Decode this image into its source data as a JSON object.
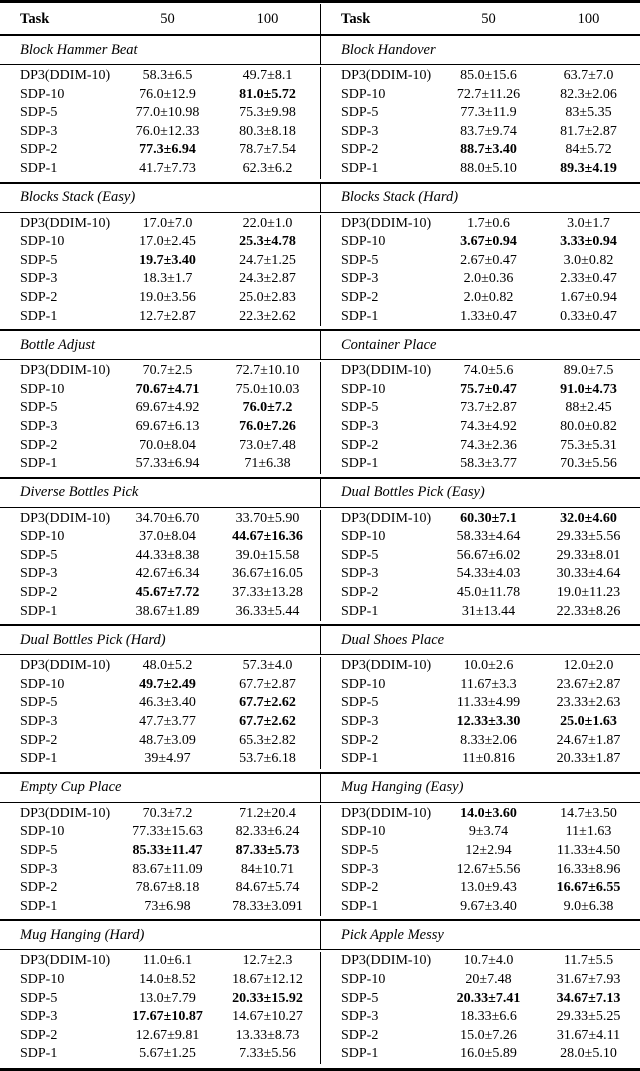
{
  "table": {
    "header": {
      "task": "Task",
      "col50": "50",
      "col100": "100"
    },
    "groups": [
      {
        "left": {
          "title": "Block Hammer Beat",
          "rows": [
            {
              "method": "DP3(DDIM-10)",
              "v50": "58.3±6.5",
              "b50": false,
              "v100": "49.7±8.1",
              "b100": false
            },
            {
              "method": "SDP-10",
              "v50": "76.0±12.9",
              "b50": false,
              "v100": "81.0±5.72",
              "b100": true
            },
            {
              "method": "SDP-5",
              "v50": "77.0±10.98",
              "b50": false,
              "v100": "75.3±9.98",
              "b100": false
            },
            {
              "method": "SDP-3",
              "v50": "76.0±12.33",
              "b50": false,
              "v100": "80.3±8.18",
              "b100": false
            },
            {
              "method": "SDP-2",
              "v50": "77.3±6.94",
              "b50": true,
              "v100": "78.7±7.54",
              "b100": false
            },
            {
              "method": "SDP-1",
              "v50": "41.7±7.73",
              "b50": false,
              "v100": "62.3±6.2",
              "b100": false
            }
          ]
        },
        "right": {
          "title": "Block Handover",
          "rows": [
            {
              "method": "DP3(DDIM-10)",
              "v50": "85.0±15.6",
              "b50": false,
              "v100": "63.7±7.0",
              "b100": false
            },
            {
              "method": "SDP-10",
              "v50": "72.7±11.26",
              "b50": false,
              "v100": "82.3±2.06",
              "b100": false
            },
            {
              "method": "SDP-5",
              "v50": "77.3±11.9",
              "b50": false,
              "v100": "83±5.35",
              "b100": false
            },
            {
              "method": "SDP-3",
              "v50": "83.7±9.74",
              "b50": false,
              "v100": "81.7±2.87",
              "b100": false
            },
            {
              "method": "SDP-2",
              "v50": "88.7±3.40",
              "b50": true,
              "v100": "84±5.72",
              "b100": false
            },
            {
              "method": "SDP-1",
              "v50": "88.0±5.10",
              "b50": false,
              "v100": "89.3±4.19",
              "b100": true
            }
          ]
        }
      },
      {
        "left": {
          "title": "Blocks Stack (Easy)",
          "rows": [
            {
              "method": "DP3(DDIM-10)",
              "v50": "17.0±7.0",
              "b50": false,
              "v100": "22.0±1.0",
              "b100": false
            },
            {
              "method": "SDP-10",
              "v50": "17.0±2.45",
              "b50": false,
              "v100": "25.3±4.78",
              "b100": true
            },
            {
              "method": "SDP-5",
              "v50": "19.7±3.40",
              "b50": true,
              "v100": "24.7±1.25",
              "b100": false
            },
            {
              "method": "SDP-3",
              "v50": "18.3±1.7",
              "b50": false,
              "v100": "24.3±2.87",
              "b100": false
            },
            {
              "method": "SDP-2",
              "v50": "19.0±3.56",
              "b50": false,
              "v100": "25.0±2.83",
              "b100": false
            },
            {
              "method": "SDP-1",
              "v50": "12.7±2.87",
              "b50": false,
              "v100": "22.3±2.62",
              "b100": false
            }
          ]
        },
        "right": {
          "title": "Blocks Stack (Hard)",
          "rows": [
            {
              "method": "DP3(DDIM-10)",
              "v50": "1.7±0.6",
              "b50": false,
              "v100": "3.0±1.7",
              "b100": false
            },
            {
              "method": "SDP-10",
              "v50": "3.67±0.94",
              "b50": true,
              "v100": "3.33±0.94",
              "b100": true
            },
            {
              "method": "SDP-5",
              "v50": "2.67±0.47",
              "b50": false,
              "v100": "3.0±0.82",
              "b100": false
            },
            {
              "method": "SDP-3",
              "v50": "2.0±0.36",
              "b50": false,
              "v100": "2.33±0.47",
              "b100": false
            },
            {
              "method": "SDP-2",
              "v50": "2.0±0.82",
              "b50": false,
              "v100": "1.67±0.94",
              "b100": false
            },
            {
              "method": "SDP-1",
              "v50": "1.33±0.47",
              "b50": false,
              "v100": "0.33±0.47",
              "b100": false
            }
          ]
        }
      },
      {
        "left": {
          "title": "Bottle Adjust",
          "rows": [
            {
              "method": "DP3(DDIM-10)",
              "v50": "70.7±2.5",
              "b50": false,
              "v100": "72.7±10.10",
              "b100": false
            },
            {
              "method": "SDP-10",
              "v50": "70.67±4.71",
              "b50": true,
              "v100": "75.0±10.03",
              "b100": false
            },
            {
              "method": "SDP-5",
              "v50": "69.67±4.92",
              "b50": false,
              "v100": "76.0±7.2",
              "b100": true
            },
            {
              "method": "SDP-3",
              "v50": "69.67±6.13",
              "b50": false,
              "v100": "76.0±7.26",
              "b100": true
            },
            {
              "method": "SDP-2",
              "v50": "70.0±8.04",
              "b50": false,
              "v100": "73.0±7.48",
              "b100": false
            },
            {
              "method": "SDP-1",
              "v50": "57.33±6.94",
              "b50": false,
              "v100": "71±6.38",
              "b100": false
            }
          ]
        },
        "right": {
          "title": "Container Place",
          "rows": [
            {
              "method": "DP3(DDIM-10)",
              "v50": "74.0±5.6",
              "b50": false,
              "v100": "89.0±7.5",
              "b100": false
            },
            {
              "method": "SDP-10",
              "v50": "75.7±0.47",
              "b50": true,
              "v100": "91.0±4.73",
              "b100": true
            },
            {
              "method": "SDP-5",
              "v50": "73.7±2.87",
              "b50": false,
              "v100": "88±2.45",
              "b100": false
            },
            {
              "method": "SDP-3",
              "v50": "74.3±4.92",
              "b50": false,
              "v100": "80.0±0.82",
              "b100": false
            },
            {
              "method": "SDP-2",
              "v50": "74.3±2.36",
              "b50": false,
              "v100": "75.3±5.31",
              "b100": false
            },
            {
              "method": "SDP-1",
              "v50": "58.3±3.77",
              "b50": false,
              "v100": "70.3±5.56",
              "b100": false
            }
          ]
        }
      },
      {
        "left": {
          "title": "Diverse Bottles Pick",
          "rows": [
            {
              "method": "DP3(DDIM-10)",
              "v50": "34.70±6.70",
              "b50": false,
              "v100": "33.70±5.90",
              "b100": false
            },
            {
              "method": "SDP-10",
              "v50": "37.0±8.04",
              "b50": false,
              "v100": "44.67±16.36",
              "b100": true
            },
            {
              "method": "SDP-5",
              "v50": "44.33±8.38",
              "b50": false,
              "v100": "39.0±15.58",
              "b100": false
            },
            {
              "method": "SDP-3",
              "v50": "42.67±6.34",
              "b50": false,
              "v100": "36.67±16.05",
              "b100": false
            },
            {
              "method": "SDP-2",
              "v50": "45.67±7.72",
              "b50": true,
              "v100": "37.33±13.28",
              "b100": false
            },
            {
              "method": "SDP-1",
              "v50": "38.67±1.89",
              "b50": false,
              "v100": "36.33±5.44",
              "b100": false
            }
          ]
        },
        "right": {
          "title": "Dual Bottles Pick (Easy)",
          "rows": [
            {
              "method": "DP3(DDIM-10)",
              "v50": "60.30±7.1",
              "b50": true,
              "v100": "32.0±4.60",
              "b100": true
            },
            {
              "method": "SDP-10",
              "v50": "58.33±4.64",
              "b50": false,
              "v100": "29.33±5.56",
              "b100": false
            },
            {
              "method": "SDP-5",
              "v50": "56.67±6.02",
              "b50": false,
              "v100": "29.33±8.01",
              "b100": false
            },
            {
              "method": "SDP-3",
              "v50": "54.33±4.03",
              "b50": false,
              "v100": "30.33±4.64",
              "b100": false
            },
            {
              "method": "SDP-2",
              "v50": "45.0±11.78",
              "b50": false,
              "v100": "19.0±11.23",
              "b100": false
            },
            {
              "method": "SDP-1",
              "v50": "31±13.44",
              "b50": false,
              "v100": "22.33±8.26",
              "b100": false
            }
          ]
        }
      },
      {
        "left": {
          "title": "Dual Bottles Pick (Hard)",
          "rows": [
            {
              "method": "DP3(DDIM-10)",
              "v50": "48.0±5.2",
              "b50": false,
              "v100": "57.3±4.0",
              "b100": false
            },
            {
              "method": "SDP-10",
              "v50": "49.7±2.49",
              "b50": true,
              "v100": "67.7±2.87",
              "b100": false
            },
            {
              "method": "SDP-5",
              "v50": "46.3±3.40",
              "b50": false,
              "v100": "67.7±2.62",
              "b100": true
            },
            {
              "method": "SDP-3",
              "v50": "47.7±3.77",
              "b50": false,
              "v100": "67.7±2.62",
              "b100": true
            },
            {
              "method": "SDP-2",
              "v50": "48.7±3.09",
              "b50": false,
              "v100": "65.3±2.82",
              "b100": false
            },
            {
              "method": "SDP-1",
              "v50": "39±4.97",
              "b50": false,
              "v100": "53.7±6.18",
              "b100": false
            }
          ]
        },
        "right": {
          "title": "Dual Shoes Place",
          "rows": [
            {
              "method": "DP3(DDIM-10)",
              "v50": "10.0±2.6",
              "b50": false,
              "v100": "12.0±2.0",
              "b100": false
            },
            {
              "method": "SDP-10",
              "v50": "11.67±3.3",
              "b50": false,
              "v100": "23.67±2.87",
              "b100": false
            },
            {
              "method": "SDP-5",
              "v50": "11.33±4.99",
              "b50": false,
              "v100": "23.33±2.63",
              "b100": false
            },
            {
              "method": "SDP-3",
              "v50": "12.33±3.30",
              "b50": true,
              "v100": "25.0±1.63",
              "b100": true
            },
            {
              "method": "SDP-2",
              "v50": "8.33±2.06",
              "b50": false,
              "v100": "24.67±1.87",
              "b100": false
            },
            {
              "method": "SDP-1",
              "v50": "11±0.816",
              "b50": false,
              "v100": "20.33±1.87",
              "b100": false
            }
          ]
        }
      },
      {
        "left": {
          "title": "Empty Cup Place",
          "rows": [
            {
              "method": "DP3(DDIM-10)",
              "v50": "70.3±7.2",
              "b50": false,
              "v100": "71.2±20.4",
              "b100": false
            },
            {
              "method": "SDP-10",
              "v50": "77.33±15.63",
              "b50": false,
              "v100": "82.33±6.24",
              "b100": false
            },
            {
              "method": "SDP-5",
              "v50": "85.33±11.47",
              "b50": true,
              "v100": "87.33±5.73",
              "b100": true
            },
            {
              "method": "SDP-3",
              "v50": "83.67±11.09",
              "b50": false,
              "v100": "84±10.71",
              "b100": false
            },
            {
              "method": "SDP-2",
              "v50": "78.67±8.18",
              "b50": false,
              "v100": "84.67±5.74",
              "b100": false
            },
            {
              "method": "SDP-1",
              "v50": "73±6.98",
              "b50": false,
              "v100": "78.33±3.091",
              "b100": false
            }
          ]
        },
        "right": {
          "title": "Mug Hanging (Easy)",
          "rows": [
            {
              "method": "DP3(DDIM-10)",
              "v50": "14.0±3.60",
              "b50": true,
              "v100": "14.7±3.50",
              "b100": false
            },
            {
              "method": "SDP-10",
              "v50": "9±3.74",
              "b50": false,
              "v100": "11±1.63",
              "b100": false
            },
            {
              "method": "SDP-5",
              "v50": "12±2.94",
              "b50": false,
              "v100": "11.33±4.50",
              "b100": false
            },
            {
              "method": "SDP-3",
              "v50": "12.67±5.56",
              "b50": false,
              "v100": "16.33±8.96",
              "b100": false
            },
            {
              "method": "SDP-2",
              "v50": "13.0±9.43",
              "b50": false,
              "v100": "16.67±6.55",
              "b100": true
            },
            {
              "method": "SDP-1",
              "v50": "9.67±3.40",
              "b50": false,
              "v100": "9.0±6.38",
              "b100": false
            }
          ]
        }
      },
      {
        "left": {
          "title": "Mug Hanging (Hard)",
          "rows": [
            {
              "method": "DP3(DDIM-10)",
              "v50": "11.0±6.1",
              "b50": false,
              "v100": "12.7±2.3",
              "b100": false
            },
            {
              "method": "SDP-10",
              "v50": "14.0±8.52",
              "b50": false,
              "v100": "18.67±12.12",
              "b100": false
            },
            {
              "method": "SDP-5",
              "v50": "13.0±7.79",
              "b50": false,
              "v100": "20.33±15.92",
              "b100": true
            },
            {
              "method": "SDP-3",
              "v50": "17.67±10.87",
              "b50": true,
              "v100": "14.67±10.27",
              "b100": false
            },
            {
              "method": "SDP-2",
              "v50": "12.67±9.81",
              "b50": false,
              "v100": "13.33±8.73",
              "b100": false
            },
            {
              "method": "SDP-1",
              "v50": "5.67±1.25",
              "b50": false,
              "v100": "7.33±5.56",
              "b100": false
            }
          ]
        },
        "right": {
          "title": "Pick Apple Messy",
          "rows": [
            {
              "method": "DP3(DDIM-10)",
              "v50": "10.7±4.0",
              "b50": false,
              "v100": "11.7±5.5",
              "b100": false
            },
            {
              "method": "SDP-10",
              "v50": "20±7.48",
              "b50": false,
              "v100": "31.67±7.93",
              "b100": false
            },
            {
              "method": "SDP-5",
              "v50": "20.33±7.41",
              "b50": true,
              "v100": "34.67±7.13",
              "b100": true
            },
            {
              "method": "SDP-3",
              "v50": "18.33±6.6",
              "b50": false,
              "v100": "29.33±5.25",
              "b100": false
            },
            {
              "method": "SDP-2",
              "v50": "15.0±7.26",
              "b50": false,
              "v100": "31.67±4.11",
              "b100": false
            },
            {
              "method": "SDP-1",
              "v50": "16.0±5.89",
              "b50": false,
              "v100": "28.0±5.10",
              "b100": false
            }
          ]
        }
      }
    ]
  }
}
